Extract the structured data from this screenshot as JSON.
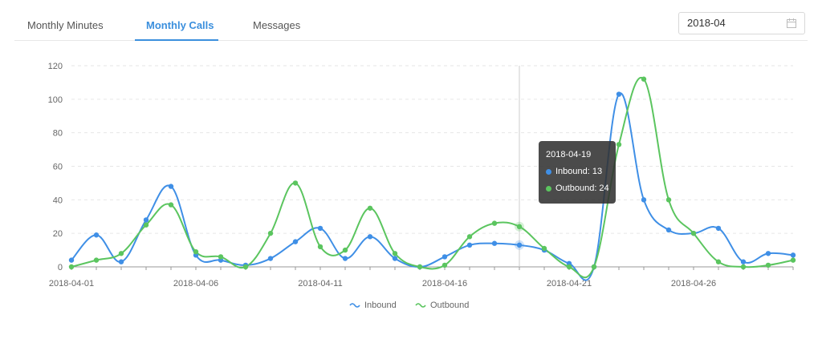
{
  "tabs": [
    {
      "label": "Monthly Minutes",
      "active": false
    },
    {
      "label": "Monthly Calls",
      "active": true
    },
    {
      "label": "Messages",
      "active": false
    }
  ],
  "date_picker": {
    "value": "2018-04",
    "icon": "calendar-icon"
  },
  "chart_data": {
    "type": "line",
    "smooth": true,
    "x": [
      "2018-04-01",
      "2018-04-02",
      "2018-04-03",
      "2018-04-04",
      "2018-04-05",
      "2018-04-06",
      "2018-04-07",
      "2018-04-08",
      "2018-04-09",
      "2018-04-10",
      "2018-04-11",
      "2018-04-12",
      "2018-04-13",
      "2018-04-14",
      "2018-04-15",
      "2018-04-16",
      "2018-04-17",
      "2018-04-18",
      "2018-04-19",
      "2018-04-20",
      "2018-04-21",
      "2018-04-22",
      "2018-04-23",
      "2018-04-24",
      "2018-04-25",
      "2018-04-26",
      "2018-04-27",
      "2018-04-28",
      "2018-04-29",
      "2018-04-30"
    ],
    "x_tick_labels": [
      "2018-04-01",
      "2018-04-06",
      "2018-04-11",
      "2018-04-16",
      "2018-04-21",
      "2018-04-26"
    ],
    "y_ticks": [
      0,
      20,
      40,
      60,
      80,
      100,
      120
    ],
    "ylim": [
      0,
      120
    ],
    "grid": "horizontal dashed",
    "legend_position": "bottom-center",
    "series": [
      {
        "name": "Inbound",
        "color": "#3f8fe6",
        "values": [
          4,
          19,
          3,
          28,
          48,
          7,
          4,
          1,
          5,
          15,
          23,
          5,
          18,
          5,
          0,
          6,
          13,
          14,
          13,
          10,
          2,
          0,
          103,
          40,
          22,
          20,
          23,
          3,
          8,
          7
        ]
      },
      {
        "name": "Outbound",
        "color": "#5bc55f",
        "values": [
          0,
          4,
          8,
          25,
          37,
          9,
          6,
          0,
          20,
          50,
          12,
          10,
          35,
          8,
          0,
          1,
          18,
          26,
          24,
          11,
          0,
          0,
          73,
          112,
          40,
          20,
          3,
          0,
          1,
          4
        ]
      }
    ],
    "tooltip": {
      "date": "2018-04-19",
      "items": [
        {
          "label": "Inbound: 13",
          "color": "#3f8fe6"
        },
        {
          "label": "Outbound: 24",
          "color": "#5bc55f"
        }
      ]
    }
  }
}
